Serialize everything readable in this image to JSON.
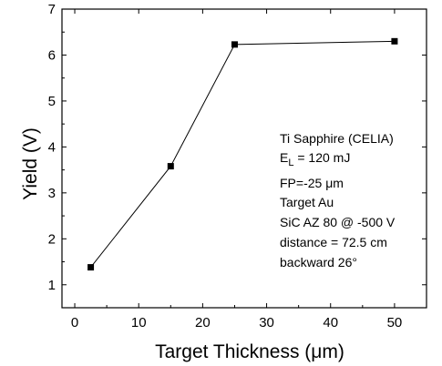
{
  "chart_data": {
    "type": "line",
    "title": "",
    "xlabel": "Target Thickness (μm)",
    "ylabel": "Yield (V)",
    "xlim": [
      -2,
      55
    ],
    "ylim": [
      0.5,
      7
    ],
    "x_ticks": [
      0,
      10,
      20,
      30,
      40,
      50
    ],
    "y_ticks": [
      1,
      2,
      3,
      4,
      5,
      6,
      7
    ],
    "series": [
      {
        "x": [
          2.5,
          15,
          25,
          50
        ],
        "y": [
          1.38,
          3.58,
          6.23,
          6.3
        ],
        "marker": "square",
        "color": "#000000"
      }
    ],
    "grid": false,
    "legend": "none",
    "annotation": {
      "line1": "Ti Sapphire (CELIA)",
      "line2_main": "E",
      "line2_sub": "L",
      "line2_rest": " = 120 mJ",
      "line3": "FP=-25 μm",
      "line4": "Target Au",
      "line5": "SiC AZ 80 @ -500 V",
      "line6": "distance = 72.5 cm",
      "line7": "backward 26°"
    }
  }
}
